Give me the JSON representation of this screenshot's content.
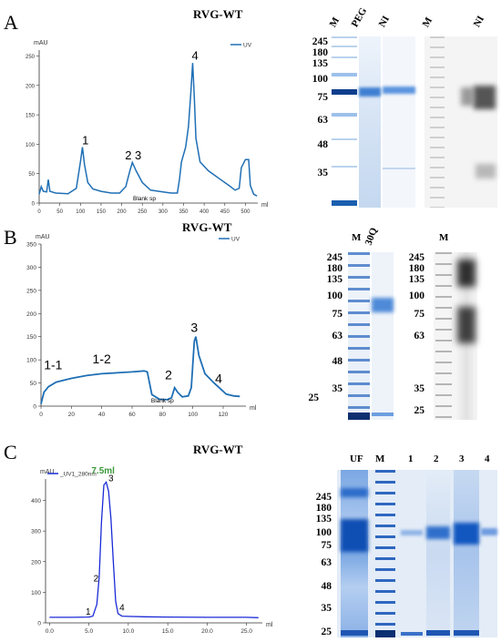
{
  "panels": [
    {
      "letter": "A",
      "title": "RVG-WT",
      "chart_data": {
        "type": "line",
        "ylabel": "mAU",
        "xlabel": "ml",
        "legend": "UV",
        "xlim": [
          0,
          530
        ],
        "ylim": [
          0,
          260
        ],
        "xticks": [
          0,
          50,
          100,
          150,
          200,
          250,
          300,
          350,
          400,
          450,
          500
        ],
        "yticks": [
          0,
          50,
          100,
          150,
          200,
          250
        ],
        "series": [
          {
            "name": "UV",
            "color": "#1f6fb5",
            "points": [
              [
                0,
                15
              ],
              [
                5,
                28
              ],
              [
                10,
                20
              ],
              [
                18,
                19
              ],
              [
                22,
                40
              ],
              [
                26,
                20
              ],
              [
                40,
                17
              ],
              [
                70,
                16
              ],
              [
                90,
                25
              ],
              [
                100,
                70
              ],
              [
                105,
                95
              ],
              [
                110,
                65
              ],
              [
                118,
                35
              ],
              [
                130,
                24
              ],
              [
                150,
                20
              ],
              [
                175,
                17
              ],
              [
                195,
                17
              ],
              [
                210,
                28
              ],
              [
                220,
                55
              ],
              [
                226,
                69
              ],
              [
                235,
                55
              ],
              [
                250,
                35
              ],
              [
                270,
                22
              ],
              [
                300,
                19
              ],
              [
                320,
                17
              ],
              [
                335,
                17
              ],
              [
                340,
                40
              ],
              [
                345,
                70
              ],
              [
                355,
                95
              ],
              [
                362,
                130
              ],
              [
                368,
                190
              ],
              [
                372,
                238
              ],
              [
                376,
                180
              ],
              [
                380,
                110
              ],
              [
                390,
                70
              ],
              [
                410,
                55
              ],
              [
                440,
                40
              ],
              [
                460,
                30
              ],
              [
                475,
                22
              ],
              [
                485,
                25
              ],
              [
                490,
                60
              ],
              [
                500,
                74
              ],
              [
                508,
                74
              ],
              [
                512,
                30
              ],
              [
                520,
                15
              ],
              [
                528,
                12
              ]
            ]
          }
        ],
        "annotations": [
          {
            "text": "1",
            "x": 112,
            "y": 100
          },
          {
            "text": "2 3",
            "x": 228,
            "y": 74
          },
          {
            "text": "4",
            "x": 378,
            "y": 244
          },
          {
            "text": "Blank sp",
            "x": 255,
            "y": 5
          }
        ]
      },
      "gel1": {
        "lanes": [
          "M",
          "PEG",
          "NI"
        ],
        "markers": [
          "245",
          "180",
          "135",
          "100",
          "75",
          "63",
          "48",
          "35"
        ]
      },
      "gel2": {
        "lanes": [
          "M",
          "NI"
        ]
      }
    },
    {
      "letter": "B",
      "title": "RVG-WT",
      "chart_data": {
        "type": "line",
        "ylabel": "mAU",
        "xlabel": "ml",
        "legend": "UV",
        "xlim": [
          0,
          135
        ],
        "ylim": [
          0,
          350
        ],
        "xticks": [
          0,
          20,
          40,
          60,
          80,
          100,
          120
        ],
        "yticks": [
          0,
          50,
          100,
          150,
          200,
          250,
          300,
          350
        ],
        "series": [
          {
            "name": "UV",
            "color": "#1f6fb5",
            "points": [
              [
                0,
                5
              ],
              [
                2,
                30
              ],
              [
                5,
                42
              ],
              [
                10,
                52
              ],
              [
                20,
                60
              ],
              [
                30,
                66
              ],
              [
                40,
                70
              ],
              [
                50,
                72
              ],
              [
                60,
                74
              ],
              [
                68,
                76
              ],
              [
                70,
                74
              ],
              [
                73,
                25
              ],
              [
                78,
                15
              ],
              [
                83,
                14
              ],
              [
                86,
                18
              ],
              [
                88,
                40
              ],
              [
                90,
                30
              ],
              [
                93,
                20
              ],
              [
                97,
                22
              ],
              [
                99,
                40
              ],
              [
                101,
                140
              ],
              [
                102,
                150
              ],
              [
                104,
                110
              ],
              [
                108,
                70
              ],
              [
                114,
                50
              ],
              [
                118,
                38
              ],
              [
                122,
                26
              ],
              [
                127,
                22
              ],
              [
                131,
                21
              ]
            ]
          }
        ],
        "annotations": [
          {
            "text": "1-1",
            "x": 8,
            "y": 80
          },
          {
            "text": "1-2",
            "x": 40,
            "y": 92
          },
          {
            "text": "2",
            "x": 84,
            "y": 58
          },
          {
            "text": "3",
            "x": 101,
            "y": 160
          },
          {
            "text": "4",
            "x": 117,
            "y": 50
          },
          {
            "text": "Blank sp",
            "x": 80,
            "y": 8
          }
        ]
      },
      "gel1": {
        "lanes": [
          "M",
          "30Q"
        ],
        "markers": [
          "245",
          "180",
          "135",
          "100",
          "75",
          "63",
          "48",
          "35",
          "25"
        ]
      },
      "gel2": {
        "lanes": [
          "M"
        ],
        "markers": [
          "245",
          "180",
          "135",
          "100",
          "75",
          "63",
          "35",
          "25"
        ]
      }
    },
    {
      "letter": "C",
      "title": "RVG-WT",
      "chart_data": {
        "type": "line",
        "ylabel": "mAU",
        "xlabel": "ml",
        "legend": "_UV1_280nm",
        "xlim": [
          -0.5,
          27
        ],
        "ylim": [
          0,
          470
        ],
        "xticks": [
          0.0,
          5.0,
          10.0,
          15.0,
          20.0,
          25.0
        ],
        "yticks": [
          0,
          100,
          200,
          300,
          400
        ],
        "series": [
          {
            "name": "_UV1_280nm",
            "color": "#1a2ad6",
            "points": [
              [
                0,
                18
              ],
              [
                3,
                18
              ],
              [
                5,
                19
              ],
              [
                5.5,
                22
              ],
              [
                6,
                60
              ],
              [
                6.3,
                150
              ],
              [
                6.6,
                330
              ],
              [
                6.9,
                450
              ],
              [
                7.2,
                460
              ],
              [
                7.5,
                430
              ],
              [
                7.8,
                340
              ],
              [
                8.1,
                200
              ],
              [
                8.4,
                70
              ],
              [
                8.7,
                30
              ],
              [
                9.2,
                22
              ],
              [
                10,
                21
              ],
              [
                12,
                20
              ],
              [
                15,
                19
              ],
              [
                20,
                18
              ],
              [
                25,
                18
              ],
              [
                26.5,
                17
              ]
            ]
          }
        ],
        "annotations": [
          {
            "text": "7.5ml",
            "x": 6.8,
            "y": 488,
            "color": "#3a9a3a"
          },
          {
            "text": "3",
            "x": 7.8,
            "y": 462
          },
          {
            "text": "2",
            "x": 5.9,
            "y": 135
          },
          {
            "text": "1",
            "x": 4.9,
            "y": 27
          },
          {
            "text": "4",
            "x": 9.2,
            "y": 40
          }
        ]
      },
      "gel1": {
        "lanes": [
          "UF",
          "M",
          "1",
          "2",
          "3",
          "4"
        ],
        "markers": [
          "245",
          "180",
          "135",
          "100",
          "75",
          "63",
          "48",
          "35",
          "25"
        ]
      }
    }
  ]
}
